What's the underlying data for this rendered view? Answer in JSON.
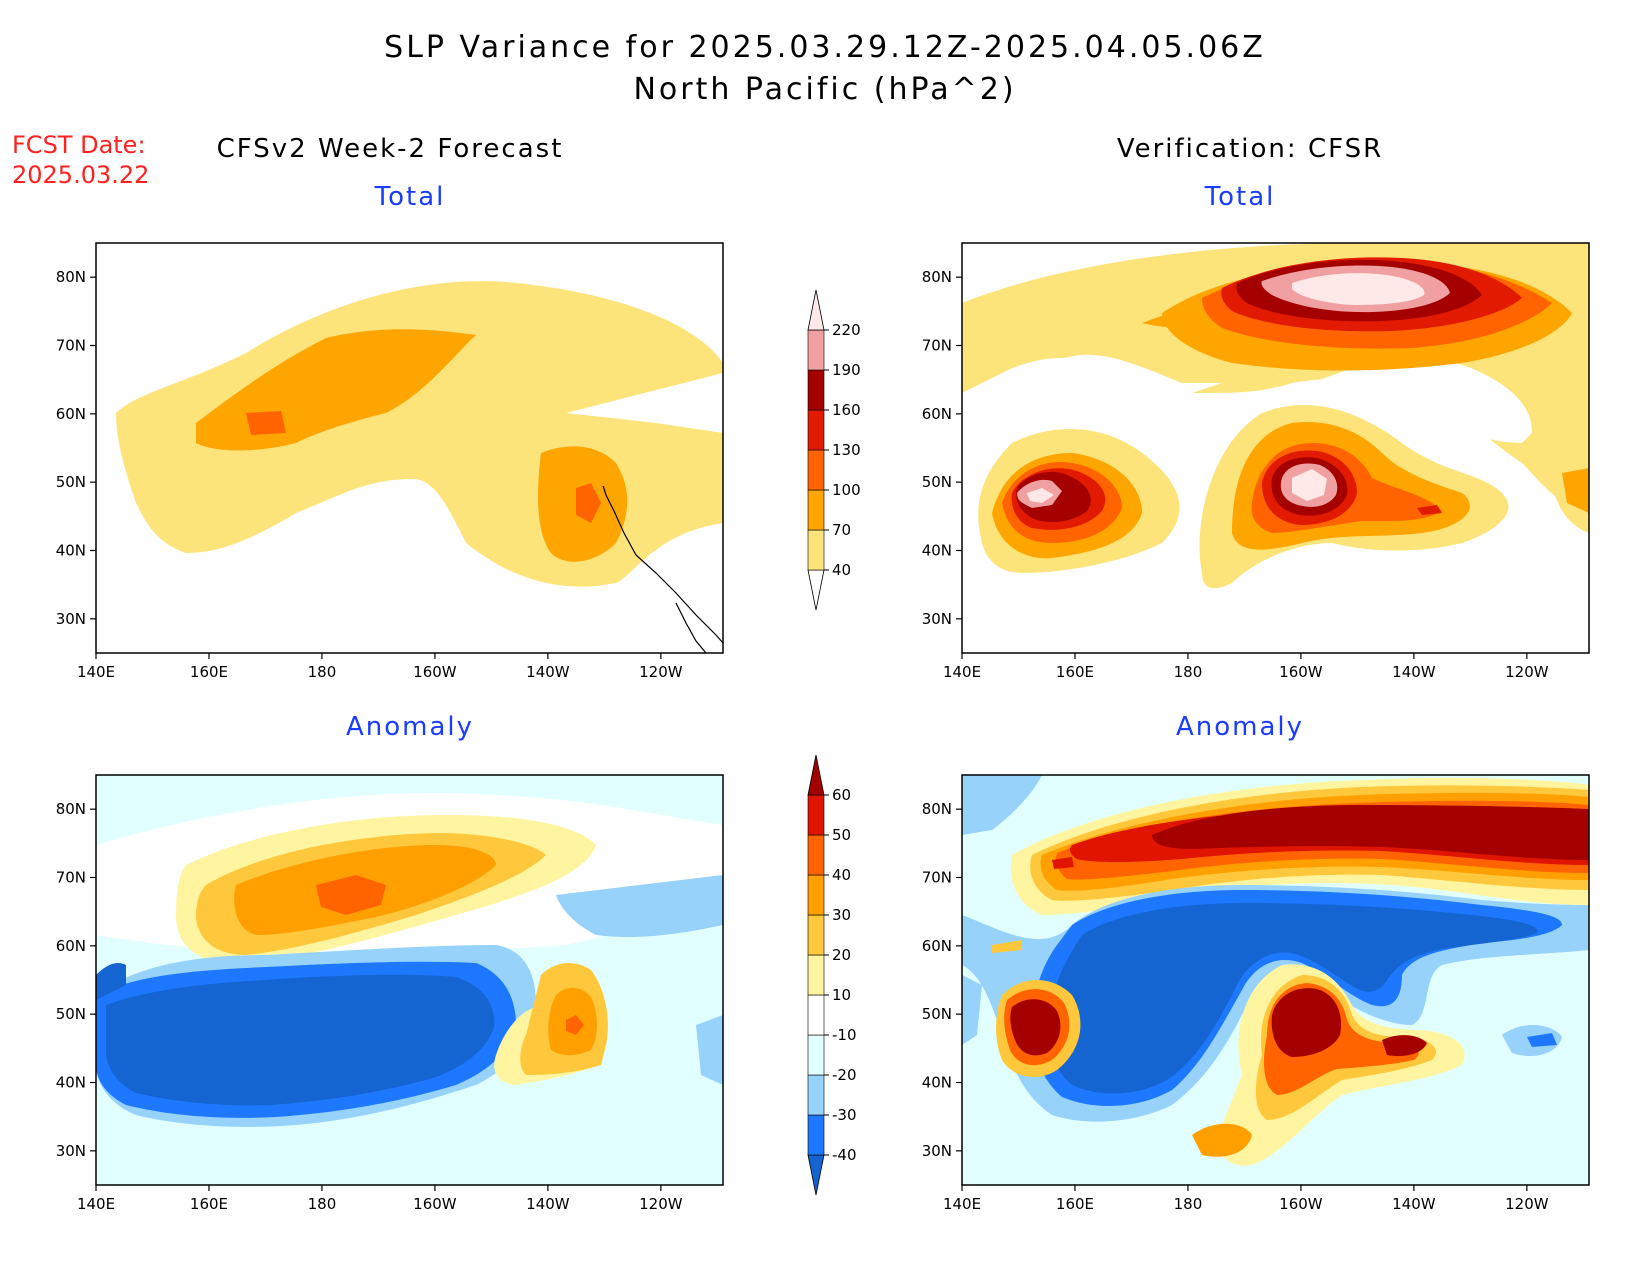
{
  "header": {
    "title_line1": "SLP Variance for 2025.03.29.12Z-2025.04.05.06Z",
    "title_line2": "North Pacific (hPa^2)",
    "fcst_label": "FCST Date:",
    "fcst_date": "2025.03.22",
    "left_column": "CFSv2 Week-2 Forecast",
    "right_column": "Verification: CFSR"
  },
  "panels": {
    "forecast_total": "Total",
    "forecast_anomaly": "Anomaly",
    "verification_total": "Total",
    "verification_anomaly": "Anomaly"
  },
  "axes": {
    "lon_labels": [
      "140E",
      "160E",
      "180",
      "160W",
      "140W",
      "120W"
    ],
    "lat_labels": [
      "80N",
      "70N",
      "60N",
      "50N",
      "40N",
      "30N"
    ]
  },
  "colorbars": {
    "total": {
      "levels": [
        "40",
        "70",
        "100",
        "130",
        "160",
        "190",
        "220"
      ],
      "colors": [
        "#fde47a",
        "#ffa500",
        "#ff6400",
        "#e11a00",
        "#a50000",
        "#f0a0a0",
        "#ffe8e8"
      ]
    },
    "anomaly": {
      "levels": [
        "-40",
        "-30",
        "-20",
        "-10",
        "10",
        "20",
        "30",
        "40",
        "50",
        "60"
      ],
      "colors": [
        "#1464d2",
        "#1e78ff",
        "#96d2fa",
        "#e1ffff",
        "#ffffff",
        "#fff5a0",
        "#ffc83c",
        "#ffa000",
        "#ff6400",
        "#e11400",
        "#a50000"
      ]
    }
  }
}
